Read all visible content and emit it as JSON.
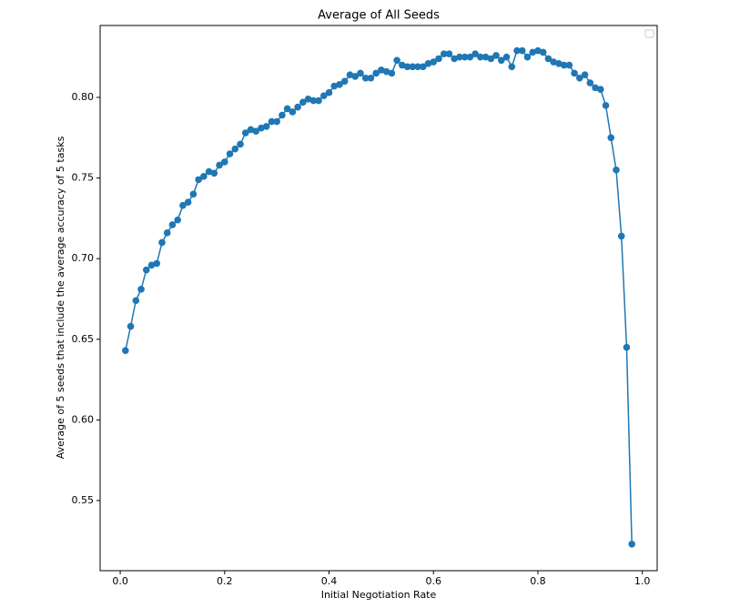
{
  "chart_data": {
    "type": "line",
    "title": "Average of All Seeds",
    "xlabel": "Initial Negotiation Rate",
    "ylabel": "Average of 5 seeds that include the average accuracy of 5 tasks",
    "x": [
      0.01,
      0.02,
      0.03,
      0.04,
      0.05,
      0.06,
      0.07,
      0.08,
      0.09,
      0.1,
      0.11,
      0.12,
      0.13,
      0.14,
      0.15,
      0.16,
      0.17,
      0.18,
      0.19,
      0.2,
      0.21,
      0.22,
      0.23,
      0.24,
      0.25,
      0.26,
      0.27,
      0.28,
      0.29,
      0.3,
      0.31,
      0.32,
      0.33,
      0.34,
      0.35,
      0.36,
      0.37,
      0.38,
      0.39,
      0.4,
      0.41,
      0.42,
      0.43,
      0.44,
      0.45,
      0.46,
      0.47,
      0.48,
      0.49,
      0.5,
      0.51,
      0.52,
      0.53,
      0.54,
      0.55,
      0.56,
      0.57,
      0.58,
      0.59,
      0.6,
      0.61,
      0.62,
      0.63,
      0.64,
      0.65,
      0.66,
      0.67,
      0.68,
      0.69,
      0.7,
      0.71,
      0.72,
      0.73,
      0.74,
      0.75,
      0.76,
      0.77,
      0.78,
      0.79,
      0.8,
      0.81,
      0.82,
      0.83,
      0.84,
      0.85,
      0.86,
      0.87,
      0.88,
      0.89,
      0.9,
      0.91,
      0.92,
      0.93,
      0.94,
      0.95,
      0.96,
      0.97,
      0.98
    ],
    "series": [
      {
        "color": "#1f77b4",
        "values": [
          0.643,
          0.658,
          0.674,
          0.681,
          0.693,
          0.696,
          0.697,
          0.71,
          0.716,
          0.721,
          0.724,
          0.733,
          0.735,
          0.74,
          0.749,
          0.751,
          0.754,
          0.753,
          0.758,
          0.76,
          0.765,
          0.768,
          0.771,
          0.778,
          0.78,
          0.779,
          0.781,
          0.782,
          0.785,
          0.785,
          0.789,
          0.793,
          0.791,
          0.794,
          0.797,
          0.799,
          0.798,
          0.798,
          0.801,
          0.803,
          0.807,
          0.808,
          0.81,
          0.814,
          0.813,
          0.815,
          0.812,
          0.812,
          0.815,
          0.817,
          0.816,
          0.815,
          0.823,
          0.82,
          0.819,
          0.819,
          0.819,
          0.819,
          0.821,
          0.822,
          0.824,
          0.827,
          0.827,
          0.824,
          0.825,
          0.825,
          0.825,
          0.827,
          0.825,
          0.825,
          0.824,
          0.826,
          0.823,
          0.825,
          0.819,
          0.829,
          0.829,
          0.825,
          0.828,
          0.829,
          0.828,
          0.824,
          0.822,
          0.821,
          0.82,
          0.82,
          0.815,
          0.812,
          0.814,
          0.809,
          0.806,
          0.805,
          0.795,
          0.775,
          0.755,
          0.714,
          0.645,
          0.523
        ]
      }
    ],
    "xlim": [
      -0.0385,
      1.0285
    ],
    "xticks": [
      {
        "value": 0.0,
        "label": "0.0"
      },
      0.2,
      0.4,
      0.6,
      0.8,
      {
        "value": 1.0,
        "label": "1.0"
      }
    ],
    "ylim": [
      0.5065,
      0.8446
    ],
    "yticks": [
      0.55,
      {
        "value": 0.6,
        "label": "0.60"
      },
      0.65,
      {
        "value": 0.7,
        "label": "0.70"
      },
      0.75,
      {
        "value": 0.8,
        "label": "0.80"
      }
    ]
  }
}
